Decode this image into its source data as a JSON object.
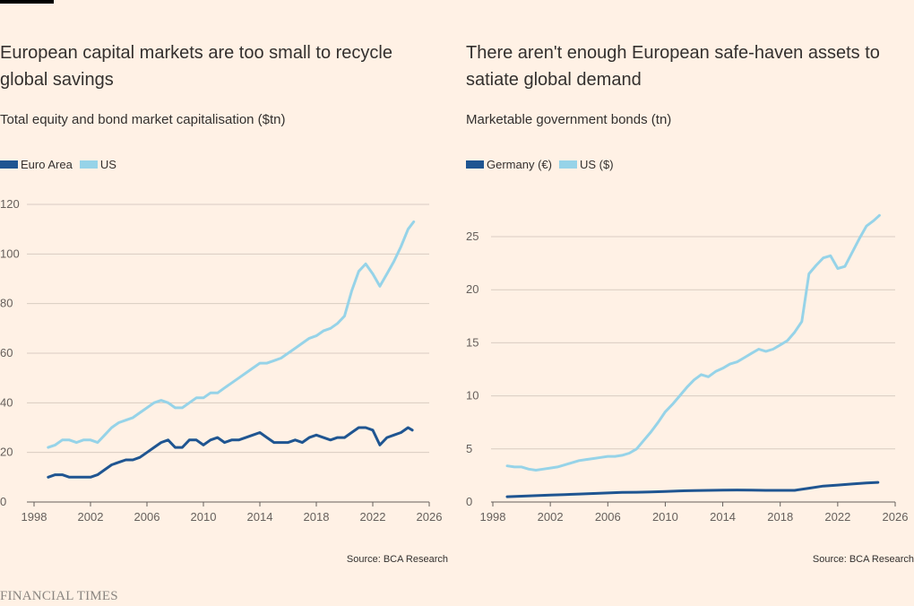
{
  "colors": {
    "background": "#fff1e5",
    "dark_series": "#1f5591",
    "light_series": "#96d3e8",
    "grid": "#d8ccc2",
    "axis": "#66605c",
    "text": "#33302e"
  },
  "branding": {
    "logo_text": "FINANCIAL TIMES"
  },
  "chart_data": [
    {
      "type": "line",
      "title": "European capital markets are too small to recycle global savings",
      "subtitle": "Total equity and bond market capitalisation ($tn)",
      "source": "Source: BCA Research",
      "xlim": [
        1998,
        2026
      ],
      "ylim": [
        0,
        120
      ],
      "x_ticks": [
        1998,
        2002,
        2006,
        2010,
        2014,
        2018,
        2022,
        2026
      ],
      "y_ticks": [
        0,
        20,
        40,
        60,
        80,
        100,
        120
      ],
      "grid": true,
      "legend_position": "top-left",
      "series": [
        {
          "name": "Euro Area",
          "color": "#1f5591",
          "x": [
            1999,
            1999.5,
            2000,
            2000.5,
            2001,
            2001.5,
            2002,
            2002.5,
            2003,
            2003.5,
            2004,
            2004.5,
            2005,
            2005.5,
            2006,
            2006.5,
            2007,
            2007.5,
            2008,
            2008.5,
            2009,
            2009.5,
            2010,
            2010.5,
            2011,
            2011.5,
            2012,
            2012.5,
            2013,
            2013.5,
            2014,
            2014.5,
            2015,
            2015.5,
            2016,
            2016.5,
            2017,
            2017.5,
            2018,
            2018.5,
            2019,
            2019.5,
            2020,
            2020.5,
            2021,
            2021.5,
            2022,
            2022.5,
            2023,
            2023.5,
            2024,
            2024.5,
            2024.8
          ],
          "y": [
            10,
            11,
            11,
            10,
            10,
            10,
            10,
            11,
            13,
            15,
            16,
            17,
            17,
            18,
            20,
            22,
            24,
            25,
            22,
            22,
            25,
            25,
            23,
            25,
            26,
            24,
            25,
            25,
            26,
            27,
            28,
            26,
            24,
            24,
            24,
            25,
            24,
            26,
            27,
            26,
            25,
            26,
            26,
            28,
            30,
            30,
            29,
            23,
            26,
            27,
            28,
            30,
            29
          ]
        },
        {
          "name": "US",
          "color": "#96d3e8",
          "x": [
            1999,
            1999.5,
            2000,
            2000.5,
            2001,
            2001.5,
            2002,
            2002.5,
            2003,
            2003.5,
            2004,
            2004.5,
            2005,
            2005.5,
            2006,
            2006.5,
            2007,
            2007.5,
            2008,
            2008.5,
            2009,
            2009.5,
            2010,
            2010.5,
            2011,
            2011.5,
            2012,
            2012.5,
            2013,
            2013.5,
            2014,
            2014.5,
            2015,
            2015.5,
            2016,
            2016.5,
            2017,
            2017.5,
            2018,
            2018.5,
            2019,
            2019.5,
            2020,
            2020.5,
            2021,
            2021.5,
            2022,
            2022.5,
            2023,
            2023.5,
            2024,
            2024.5,
            2024.9
          ],
          "y": [
            22,
            23,
            25,
            25,
            24,
            25,
            25,
            24,
            27,
            30,
            32,
            33,
            34,
            36,
            38,
            40,
            41,
            40,
            38,
            38,
            40,
            42,
            42,
            44,
            44,
            46,
            48,
            50,
            52,
            54,
            56,
            56,
            57,
            58,
            60,
            62,
            64,
            66,
            67,
            69,
            70,
            72,
            75,
            85,
            93,
            96,
            92,
            87,
            92,
            97,
            103,
            110,
            113
          ]
        }
      ]
    },
    {
      "type": "line",
      "title": "There aren't enough European safe-haven assets to satiate global demand",
      "subtitle": "Marketable government bonds (tn)",
      "source": "Source: BCA Research",
      "xlim": [
        1998,
        2026
      ],
      "ylim": [
        0,
        25
      ],
      "x_ticks": [
        1998,
        2002,
        2006,
        2010,
        2014,
        2018,
        2022,
        2026
      ],
      "y_ticks": [
        0,
        5,
        10,
        15,
        20,
        25
      ],
      "grid": true,
      "legend_position": "top-left",
      "series": [
        {
          "name": "Germany (€)",
          "color": "#1f5591",
          "x": [
            1999,
            2000,
            2001,
            2002,
            2003,
            2004,
            2005,
            2006,
            2007,
            2008,
            2009,
            2010,
            2011,
            2012,
            2013,
            2014,
            2015,
            2016,
            2017,
            2018,
            2019,
            2020,
            2021,
            2022,
            2023,
            2024,
            2024.8
          ],
          "y": [
            0.5,
            0.55,
            0.6,
            0.65,
            0.7,
            0.75,
            0.8,
            0.85,
            0.9,
            0.92,
            0.95,
            1.0,
            1.05,
            1.08,
            1.1,
            1.12,
            1.13,
            1.12,
            1.1,
            1.1,
            1.1,
            1.3,
            1.5,
            1.6,
            1.7,
            1.8,
            1.85
          ]
        },
        {
          "name": "US ($)",
          "color": "#96d3e8",
          "x": [
            1999,
            1999.5,
            2000,
            2000.5,
            2001,
            2001.5,
            2002,
            2002.5,
            2003,
            2003.5,
            2004,
            2004.5,
            2005,
            2005.5,
            2006,
            2006.5,
            2007,
            2007.5,
            2008,
            2008.5,
            2009,
            2009.5,
            2010,
            2010.5,
            2011,
            2011.5,
            2012,
            2012.5,
            2013,
            2013.5,
            2014,
            2014.5,
            2015,
            2015.5,
            2016,
            2016.5,
            2017,
            2017.5,
            2018,
            2018.5,
            2019,
            2019.5,
            2020,
            2020.5,
            2021,
            2021.5,
            2022,
            2022.5,
            2023,
            2023.5,
            2024,
            2024.5,
            2024.9
          ],
          "y": [
            3.4,
            3.3,
            3.3,
            3.1,
            3.0,
            3.1,
            3.2,
            3.3,
            3.5,
            3.7,
            3.9,
            4.0,
            4.1,
            4.2,
            4.3,
            4.3,
            4.4,
            4.6,
            5.0,
            5.8,
            6.6,
            7.5,
            8.5,
            9.2,
            10.0,
            10.8,
            11.5,
            12.0,
            11.8,
            12.3,
            12.6,
            13.0,
            13.2,
            13.6,
            14.0,
            14.4,
            14.2,
            14.4,
            14.8,
            15.2,
            16.0,
            17.0,
            21.5,
            22.3,
            23.0,
            23.2,
            22.0,
            22.2,
            23.5,
            24.8,
            26.0,
            26.5,
            27.0
          ]
        }
      ]
    }
  ]
}
